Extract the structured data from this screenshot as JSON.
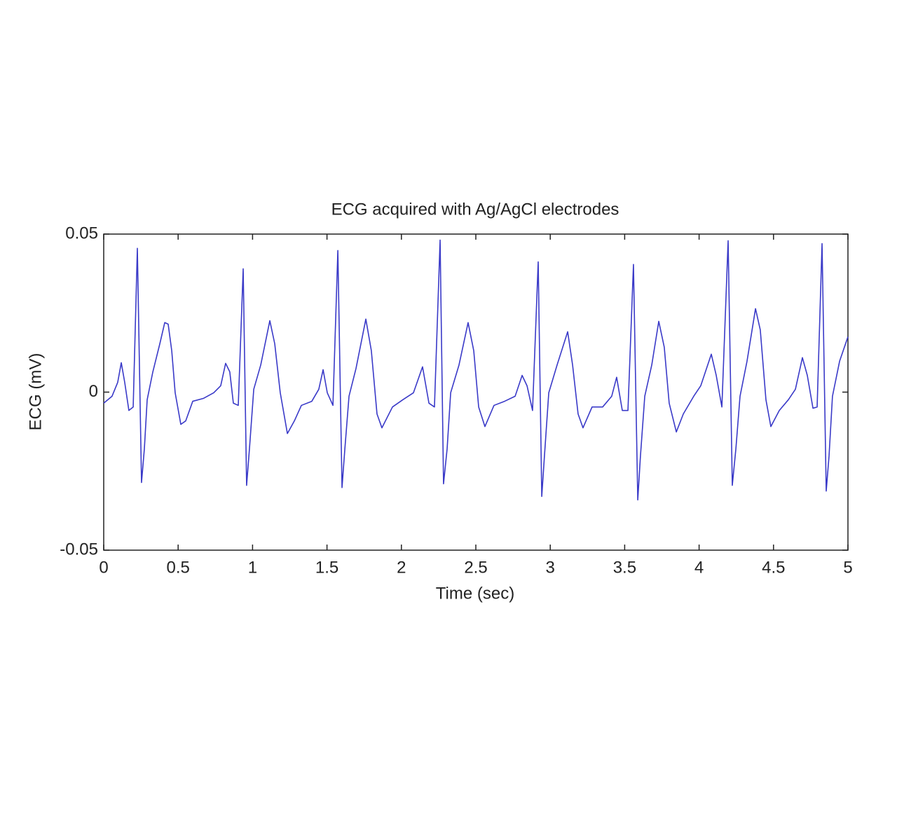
{
  "chart_data": {
    "type": "line",
    "title": "ECG acquired with Ag/AgCl electrodes",
    "xlabel": "Time (sec)",
    "ylabel": "ECG (mV)",
    "color": "#3a3ac8",
    "xlim": [
      0,
      5
    ],
    "ylim": [
      -0.05,
      0.05
    ],
    "xticks": [
      0,
      0.5,
      1,
      1.5,
      2,
      2.5,
      3,
      3.5,
      4,
      4.5,
      5
    ],
    "yticks": [
      -0.05,
      0,
      0.05
    ],
    "grid": false,
    "x": [
      0,
      0.056,
      0.094,
      0.118,
      0.141,
      0.169,
      0.198,
      0.226,
      0.254,
      0.273,
      0.292,
      0.33,
      0.377,
      0.41,
      0.433,
      0.457,
      0.48,
      0.518,
      0.551,
      0.598,
      0.669,
      0.739,
      0.786,
      0.819,
      0.847,
      0.871,
      0.904,
      0.937,
      0.96,
      0.979,
      1.008,
      1.055,
      1.116,
      1.149,
      1.186,
      1.234,
      1.281,
      1.328,
      1.398,
      1.445,
      1.474,
      1.502,
      1.54,
      1.573,
      1.601,
      1.62,
      1.648,
      1.695,
      1.761,
      1.798,
      1.836,
      1.869,
      1.94,
      2.01,
      2.081,
      2.142,
      2.185,
      2.222,
      2.26,
      2.283,
      2.307,
      2.331,
      2.387,
      2.448,
      2.486,
      2.519,
      2.561,
      2.622,
      2.693,
      2.764,
      2.811,
      2.844,
      2.881,
      2.919,
      2.943,
      2.961,
      2.99,
      3.046,
      3.117,
      3.15,
      3.187,
      3.22,
      3.281,
      3.352,
      3.413,
      3.446,
      3.484,
      3.522,
      3.559,
      3.588,
      3.606,
      3.635,
      3.682,
      3.729,
      3.766,
      3.799,
      3.847,
      3.894,
      3.964,
      4.011,
      4.082,
      4.115,
      4.153,
      4.195,
      4.223,
      4.247,
      4.275,
      4.322,
      4.379,
      4.411,
      4.449,
      4.482,
      4.539,
      4.6,
      4.647,
      4.694,
      4.727,
      4.765,
      4.793,
      4.826,
      4.854,
      4.873,
      4.896,
      4.944,
      5.0
    ],
    "values": [
      -0.0035,
      -0.0013,
      0.0031,
      0.0093,
      0.0031,
      -0.0058,
      -0.0047,
      0.0455,
      -0.0286,
      -0.018,
      -0.0024,
      0.0064,
      0.0153,
      0.022,
      0.0215,
      0.0131,
      -0.0002,
      -0.0102,
      -0.0091,
      -0.0029,
      -0.002,
      -0.0002,
      0.002,
      0.0091,
      0.0064,
      -0.0035,
      -0.0042,
      0.039,
      -0.0295,
      -0.018,
      0.0009,
      0.0086,
      0.0226,
      0.0153,
      -0.0002,
      -0.0131,
      -0.0091,
      -0.0042,
      -0.0029,
      0.0009,
      0.0071,
      -0.0002,
      -0.0042,
      0.0448,
      -0.0302,
      -0.018,
      -0.0013,
      0.0075,
      0.0231,
      0.0131,
      -0.0069,
      -0.0113,
      -0.0047,
      -0.0024,
      -0.0002,
      0.008,
      -0.0035,
      -0.0047,
      0.0481,
      -0.029,
      -0.018,
      -0.0002,
      0.0086,
      0.022,
      0.0131,
      -0.0047,
      -0.0109,
      -0.0042,
      -0.0029,
      -0.0013,
      0.0053,
      0.002,
      -0.0058,
      0.0412,
      -0.033,
      -0.0202,
      -0.0002,
      0.0086,
      0.0191,
      0.0086,
      -0.0069,
      -0.0113,
      -0.0047,
      -0.0047,
      -0.0013,
      0.0047,
      -0.0058,
      -0.0058,
      0.0404,
      -0.0341,
      -0.0202,
      -0.0013,
      0.0086,
      0.0224,
      0.0142,
      -0.0035,
      -0.0126,
      -0.0069,
      -0.0013,
      0.002,
      0.012,
      0.0053,
      -0.0047,
      0.0479,
      -0.0295,
      -0.018,
      -0.0013,
      0.0098,
      0.0264,
      0.0197,
      -0.0024,
      -0.0109,
      -0.0058,
      -0.0024,
      0.0009,
      0.0109,
      0.0053,
      -0.0051,
      -0.0047,
      0.047,
      -0.0313,
      -0.0202,
      -0.0013,
      0.0098,
      0.0175
    ]
  }
}
